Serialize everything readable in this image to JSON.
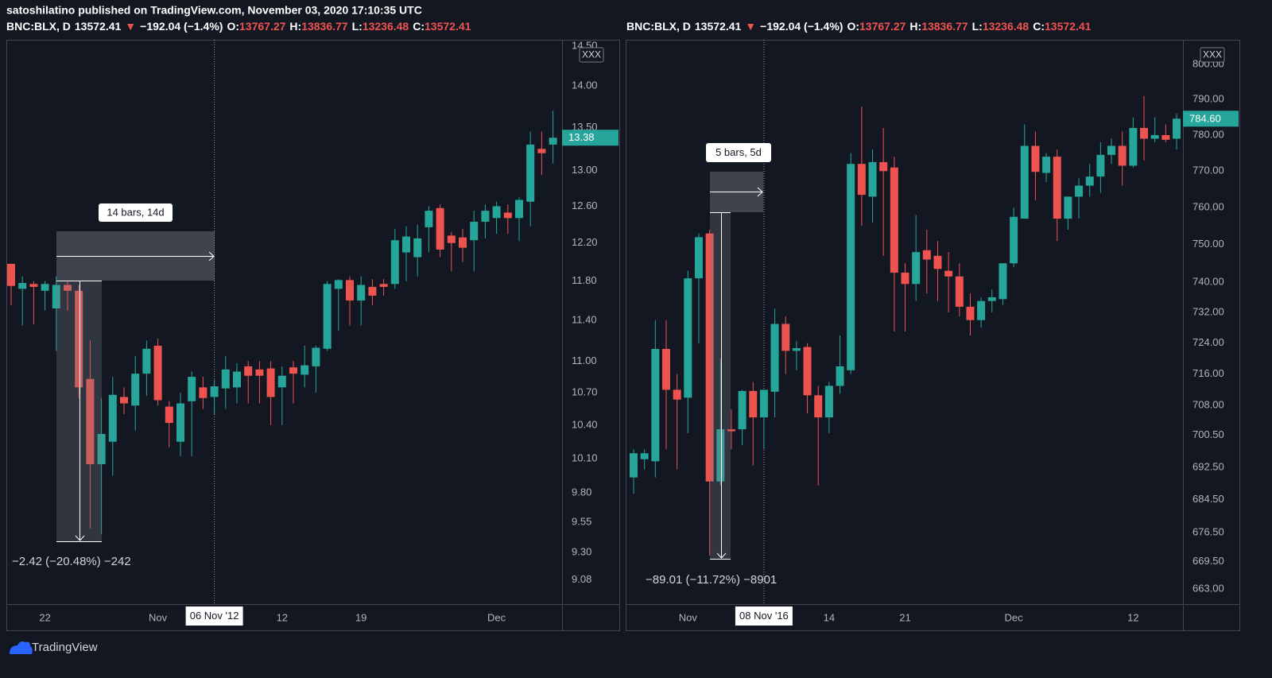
{
  "header": {
    "publisher": "satoshilatino published on TradingView.com, November 03, 2020 17:10:35 UTC"
  },
  "footer": {
    "brand": "TradingView"
  },
  "chart_data": [
    {
      "type": "candlestick",
      "legend": [
        {
          "text": "BNC:BLX, D",
          "color": "#ffffff"
        },
        {
          "text": "13572.41",
          "color": "#ffffff"
        },
        {
          "text": "▼",
          "color": "#ef5350"
        },
        {
          "text": "−192.04 (−1.4%)",
          "color": "#ffffff"
        },
        {
          "text": "O:",
          "color": "#ffffff"
        },
        {
          "text": "13767.27",
          "color": "#ef5350"
        },
        {
          "text": "H:",
          "color": "#ffffff"
        },
        {
          "text": "13836.77",
          "color": "#ef5350"
        },
        {
          "text": "L:",
          "color": "#ffffff"
        },
        {
          "text": "13236.48",
          "color": "#ef5350"
        },
        {
          "text": "C:",
          "color": "#ffffff"
        },
        {
          "text": "13572.41",
          "color": "#ef5350"
        }
      ],
      "currency": "XXX",
      "categories": [
        null,
        null,
        null,
        "22",
        null,
        null,
        null,
        null,
        null,
        null,
        null,
        null,
        null,
        "Nov",
        null,
        null,
        null,
        null,
        "06 Nov '12",
        null,
        null,
        null,
        null,
        null,
        "12",
        null,
        null,
        null,
        null,
        null,
        null,
        "19",
        null,
        null,
        null,
        null,
        null,
        null,
        null,
        null,
        null,
        null,
        null,
        "Dec",
        null,
        null,
        null,
        null,
        null
      ],
      "open": [
        11.98,
        11.72,
        11.77,
        11.7,
        11.52,
        11.76,
        11.7,
        10.83,
        10.05,
        10.25,
        10.66,
        10.58,
        10.88,
        11.15,
        10.57,
        10.25,
        10.62,
        10.75,
        10.66,
        10.74,
        10.75,
        10.95,
        10.92,
        10.93,
        10.75,
        10.94,
        10.87,
        10.95,
        11.12,
        11.72,
        11.81,
        11.6,
        11.74,
        11.77,
        11.77,
        12.1,
        12.05,
        12.37,
        12.58,
        12.28,
        12.26,
        12.23,
        12.43,
        12.47,
        12.53,
        12.47,
        12.65,
        13.25,
        13.3
      ],
      "high": [
        11.98,
        11.85,
        11.8,
        11.8,
        11.85,
        11.8,
        11.76,
        11.2,
        10.65,
        10.85,
        10.75,
        11.05,
        11.2,
        11.22,
        10.62,
        10.7,
        10.9,
        10.85,
        10.82,
        11.05,
        10.98,
        11.0,
        11.0,
        11.0,
        10.95,
        11.0,
        11.15,
        11.15,
        11.8,
        11.82,
        11.85,
        11.85,
        11.82,
        11.82,
        12.35,
        12.38,
        12.4,
        12.6,
        12.62,
        12.32,
        12.35,
        12.55,
        12.62,
        12.65,
        12.62,
        12.7,
        13.45,
        13.45,
        13.7
      ],
      "low": [
        11.55,
        11.35,
        11.36,
        11.5,
        11.1,
        11.5,
        10.65,
        9.5,
        9.45,
        9.95,
        10.5,
        10.35,
        10.67,
        10.58,
        10.2,
        10.12,
        10.12,
        10.55,
        10.5,
        10.55,
        10.6,
        10.6,
        10.6,
        10.4,
        10.4,
        10.6,
        10.75,
        10.7,
        11.1,
        11.3,
        11.35,
        11.35,
        11.55,
        11.65,
        11.72,
        11.8,
        11.85,
        12.1,
        12.05,
        11.9,
        12.0,
        11.9,
        12.25,
        12.3,
        12.3,
        12.22,
        12.38,
        12.95,
        13.08
      ],
      "close": [
        11.75,
        11.78,
        11.74,
        11.77,
        11.76,
        11.7,
        10.75,
        10.05,
        10.32,
        10.68,
        10.6,
        10.88,
        11.12,
        10.63,
        10.42,
        10.6,
        10.85,
        10.65,
        10.76,
        10.92,
        10.9,
        10.86,
        10.86,
        10.66,
        10.86,
        10.88,
        10.96,
        11.13,
        11.77,
        11.81,
        11.6,
        11.76,
        11.65,
        11.74,
        12.23,
        12.27,
        12.25,
        12.55,
        12.13,
        12.2,
        12.15,
        12.43,
        12.55,
        12.6,
        12.47,
        12.67,
        13.3,
        13.2,
        13.38
      ],
      "up_color": "#26a69a",
      "down_color": "#ef5350",
      "log_scale": true,
      "grid": false,
      "ylim": [
        8.89,
        14.58
      ],
      "yticks": [
        9.08,
        {
          "value": 9.3,
          "label": "9.30"
        },
        9.55,
        {
          "value": 9.8,
          "label": "9.80"
        },
        {
          "value": 10.1,
          "label": "10.10"
        },
        {
          "value": 10.4,
          "label": "10.40"
        },
        {
          "value": 10.7,
          "label": "10.70"
        },
        {
          "value": 11,
          "label": "11.00"
        },
        {
          "value": 11.4,
          "label": "11.40"
        },
        {
          "value": 11.8,
          "label": "11.80"
        },
        {
          "value": 12.2,
          "label": "12.20"
        },
        {
          "value": 12.6,
          "label": "12.60"
        },
        {
          "value": 13,
          "label": "13.00"
        },
        {
          "value": 13.5,
          "label": "13.50"
        },
        {
          "value": 14,
          "label": "14.00"
        },
        {
          "value": 14.5,
          "label": "14.50"
        }
      ],
      "last_price": 13.38,
      "crosshair_index": 18,
      "measure": {
        "bars_label": "14 bars, 14d",
        "price_label": "−2.42 (−20.48%) −242"
      }
    },
    {
      "type": "candlestick",
      "legend": [
        {
          "text": "BNC:BLX, D",
          "color": "#ffffff"
        },
        {
          "text": "13572.41",
          "color": "#ffffff"
        },
        {
          "text": "▼",
          "color": "#ef5350"
        },
        {
          "text": "−192.04 (−1.4%)",
          "color": "#ffffff"
        },
        {
          "text": "O:",
          "color": "#ffffff"
        },
        {
          "text": "13767.27",
          "color": "#ef5350"
        },
        {
          "text": "H:",
          "color": "#ffffff"
        },
        {
          "text": "13836.77",
          "color": "#ef5350"
        },
        {
          "text": "L:",
          "color": "#ffffff"
        },
        {
          "text": "13236.48",
          "color": "#ef5350"
        },
        {
          "text": "C:",
          "color": "#ffffff"
        },
        {
          "text": "13572.41",
          "color": "#ef5350"
        }
      ],
      "currency": "XXX",
      "categories": [
        null,
        null,
        null,
        null,
        null,
        "Nov",
        null,
        null,
        null,
        null,
        null,
        null,
        "08 Nov '16",
        null,
        null,
        null,
        null,
        null,
        "14",
        null,
        null,
        null,
        null,
        null,
        null,
        "21",
        null,
        null,
        null,
        null,
        null,
        null,
        null,
        null,
        null,
        "Dec",
        null,
        null,
        null,
        null,
        null,
        null,
        null,
        null,
        null,
        null,
        "12",
        null,
        null,
        null,
        null
      ],
      "open": [
        690,
        694.5,
        694,
        722.5,
        712,
        710,
        741,
        753,
        689,
        702,
        702,
        711.7,
        705,
        711.5,
        729,
        722,
        723,
        710.6,
        705,
        713,
        717,
        772,
        763,
        772.5,
        771,
        742.5,
        739.5,
        748.5,
        747,
        743,
        741.5,
        733.5,
        730,
        735,
        735.5,
        745,
        757,
        777,
        769.5,
        774,
        757,
        763,
        766,
        768.5,
        774.5,
        777,
        771.5,
        782,
        779,
        780,
        779
      ],
      "high": [
        697,
        697,
        730,
        730,
        716,
        743,
        753,
        754,
        720,
        707,
        712,
        714,
        712,
        733,
        731,
        724.5,
        724,
        713,
        714,
        726,
        775,
        788,
        776,
        782,
        774,
        745,
        758,
        754,
        751,
        748,
        745,
        737,
        736,
        738,
        745,
        760,
        783,
        781,
        775,
        776,
        763,
        768,
        772,
        778,
        779,
        781,
        785,
        791,
        785,
        783,
        786
      ],
      "low": [
        686,
        692,
        690,
        697,
        692,
        701,
        724,
        671,
        688,
        697,
        698,
        693,
        697,
        705,
        716,
        717,
        706,
        688,
        701,
        711,
        716,
        755,
        756,
        747,
        727,
        727,
        735,
        737,
        735,
        732,
        731,
        726,
        728,
        732,
        734,
        744,
        757,
        762,
        767,
        751,
        754,
        757,
        763,
        764,
        772,
        766,
        771,
        773,
        778,
        778,
        776
      ],
      "close": [
        696,
        696,
        722.5,
        712,
        709.5,
        741,
        752,
        689,
        702,
        701.5,
        711.7,
        705,
        712,
        729,
        722,
        722.7,
        710.6,
        705,
        713,
        718,
        772,
        763.5,
        772.5,
        770,
        742.5,
        739.5,
        748,
        746,
        743.5,
        741.5,
        733.5,
        730,
        735,
        736,
        745,
        757.5,
        777,
        769.8,
        774,
        757,
        763,
        766,
        768.5,
        774.5,
        777,
        771.5,
        782,
        779,
        780,
        778.7,
        784.6
      ],
      "up_color": "#26a69a",
      "down_color": "#ef5350",
      "log_scale": true,
      "grid": false,
      "ylim": [
        659.4,
        807.1
      ],
      "yticks": [
        {
          "value": 663,
          "label": "663.00"
        },
        {
          "value": 669.5,
          "label": "669.50"
        },
        {
          "value": 676.5,
          "label": "676.50"
        },
        {
          "value": 684.5,
          "label": "684.50"
        },
        {
          "value": 692.5,
          "label": "692.50"
        },
        {
          "value": 700.5,
          "label": "700.50"
        },
        {
          "value": 708,
          "label": "708.00"
        },
        {
          "value": 716,
          "label": "716.00"
        },
        {
          "value": 724,
          "label": "724.00"
        },
        {
          "value": 732,
          "label": "732.00"
        },
        {
          "value": 740,
          "label": "740.00"
        },
        {
          "value": 750,
          "label": "750.00"
        },
        {
          "value": 760,
          "label": "760.00"
        },
        {
          "value": 770,
          "label": "770.00"
        },
        {
          "value": 780,
          "label": "780.00"
        },
        {
          "value": 790,
          "label": "790.00"
        },
        {
          "value": 800,
          "label": "800.00"
        }
      ],
      "last_price": {
        "value": 784.6,
        "label": "784.60"
      },
      "crosshair_index": 12,
      "measure": {
        "bars_label": "5 bars, 5d",
        "price_label": "−89.01 (−11.72%) −8901"
      }
    }
  ]
}
